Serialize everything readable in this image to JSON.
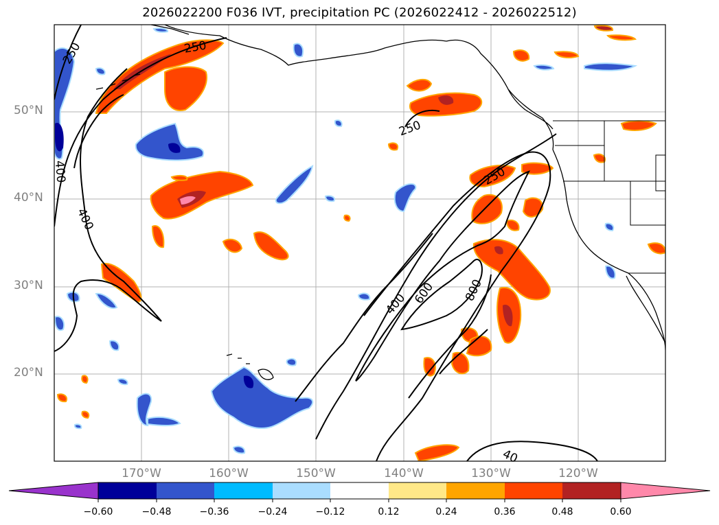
{
  "title": "2026022200 F036 IVT, precipitation PC (2026022412 - 2026022512)",
  "map": {
    "lat_labels": [
      "50°N",
      "40°N",
      "30°N",
      "20°N"
    ],
    "lon_labels": [
      "170°W",
      "160°W",
      "150°W",
      "140°W",
      "130°W",
      "120°W"
    ],
    "contour_labels": [
      "250",
      "250",
      "400",
      "400",
      "250",
      "250",
      "400",
      "600",
      "800",
      "40"
    ]
  },
  "colorbar": {
    "tick_labels": [
      "−0.60",
      "−0.48",
      "−0.36",
      "−0.24",
      "−0.12",
      "0.12",
      "0.24",
      "0.36",
      "0.48",
      "0.60"
    ],
    "colors": [
      "#9933cc",
      "#000099",
      "#3355cc",
      "#00bbff",
      "#aaddff",
      "#ffffff",
      "#ffe888",
      "#ffa500",
      "#ff4400",
      "#b22222",
      "#ff88aa"
    ]
  },
  "colors": {
    "coast": "#000000",
    "grid": "#b0b0b0",
    "contour": "#000000"
  }
}
